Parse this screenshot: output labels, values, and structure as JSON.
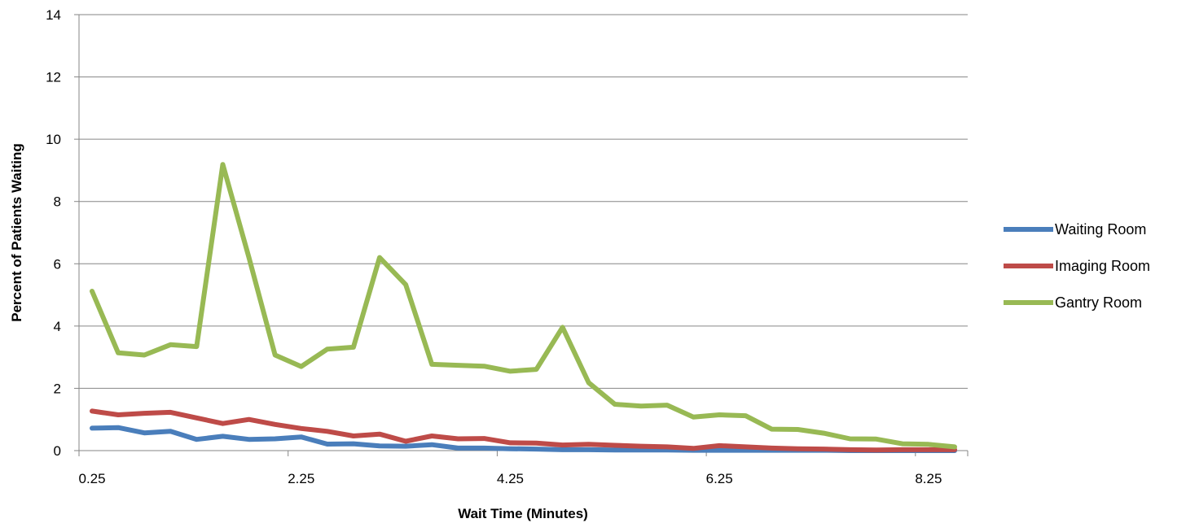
{
  "chart_data": {
    "type": "line",
    "title": "",
    "xlabel": "Wait Time (Minutes)",
    "ylabel": "Percent of Patients Waiting",
    "xlim": [
      0.25,
      8.5
    ],
    "ylim": [
      0,
      14
    ],
    "x_tick_labels": [
      "0.25",
      "2.25",
      "4.25",
      "6.25",
      "8.25"
    ],
    "y_tick_labels": [
      "0",
      "2",
      "4",
      "6",
      "8",
      "10",
      "12",
      "14"
    ],
    "grid": "horizontal",
    "legend_position": "right",
    "x": [
      0.25,
      0.5,
      0.75,
      1.0,
      1.25,
      1.5,
      1.75,
      2.0,
      2.25,
      2.5,
      2.75,
      3.0,
      3.25,
      3.5,
      3.75,
      4.0,
      4.25,
      4.5,
      4.75,
      5.0,
      5.25,
      5.5,
      5.75,
      6.0,
      6.25,
      6.5,
      6.75,
      7.0,
      7.25,
      7.5,
      7.75,
      8.0,
      8.25,
      8.5
    ],
    "series": [
      {
        "name": "Waiting Room",
        "color": "#4a7ebb",
        "values": [
          0.72,
          0.74,
          0.57,
          0.62,
          0.36,
          0.46,
          0.36,
          0.38,
          0.44,
          0.21,
          0.22,
          0.15,
          0.14,
          0.19,
          0.08,
          0.08,
          0.06,
          0.05,
          0.03,
          0.03,
          0.02,
          0.02,
          0.02,
          0.01,
          0.01,
          0.01,
          0.01,
          0.01,
          0.01,
          0.0,
          0.0,
          0.0,
          0.0,
          0.0
        ]
      },
      {
        "name": "Imaging Room",
        "color": "#be4b48",
        "values": [
          1.27,
          1.15,
          1.2,
          1.23,
          1.05,
          0.87,
          1.0,
          0.84,
          0.71,
          0.62,
          0.47,
          0.53,
          0.3,
          0.47,
          0.38,
          0.39,
          0.25,
          0.24,
          0.18,
          0.2,
          0.17,
          0.14,
          0.12,
          0.07,
          0.16,
          0.12,
          0.08,
          0.06,
          0.05,
          0.03,
          0.02,
          0.03,
          0.03,
          0.03
        ]
      },
      {
        "name": "Gantry Room",
        "color": "#98b954",
        "values": [
          5.12,
          3.14,
          3.07,
          3.4,
          3.34,
          9.19,
          6.2,
          3.07,
          2.7,
          3.26,
          3.32,
          6.2,
          5.33,
          2.77,
          2.74,
          2.71,
          2.55,
          2.61,
          3.96,
          2.18,
          1.49,
          1.43,
          1.46,
          1.08,
          1.15,
          1.12,
          0.69,
          0.68,
          0.56,
          0.38,
          0.37,
          0.22,
          0.2,
          0.12
        ]
      }
    ]
  }
}
